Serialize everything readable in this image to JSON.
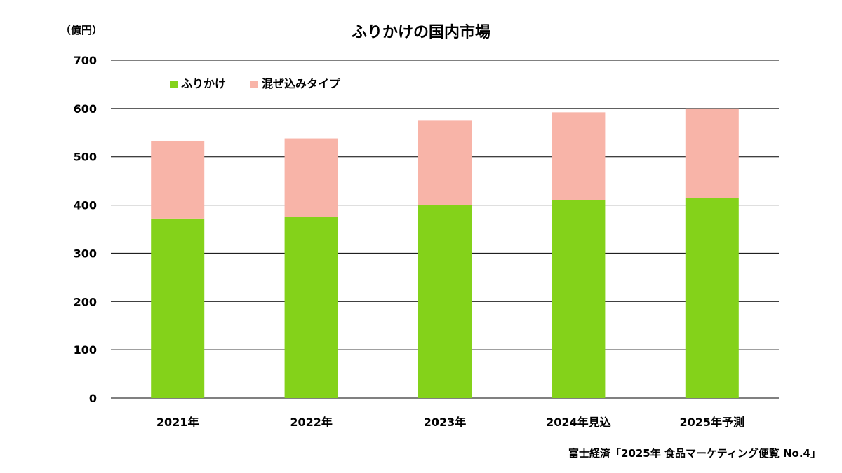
{
  "chart_data": {
    "type": "bar",
    "stacked": true,
    "title": "ふりかけの国内市場",
    "unit_label": "（億円）",
    "categories": [
      "2021年",
      "2022年",
      "2023年",
      "2024年見込",
      "2025年予測"
    ],
    "series": [
      {
        "name": "ふりかけ",
        "color": "#84d21a",
        "values": [
          372,
          375,
          400,
          410,
          414
        ]
      },
      {
        "name": "混ぜ込みタイプ",
        "color": "#f8b4a8",
        "values": [
          161,
          163,
          176,
          182,
          186
        ]
      }
    ],
    "ylim": [
      0,
      700
    ],
    "yticks": [
      0,
      100,
      200,
      300,
      400,
      500,
      600,
      700
    ],
    "grid": true,
    "legend_position": "top-left",
    "source": "富士経済「2025年 食品マーケティング便覧 No.4」"
  }
}
